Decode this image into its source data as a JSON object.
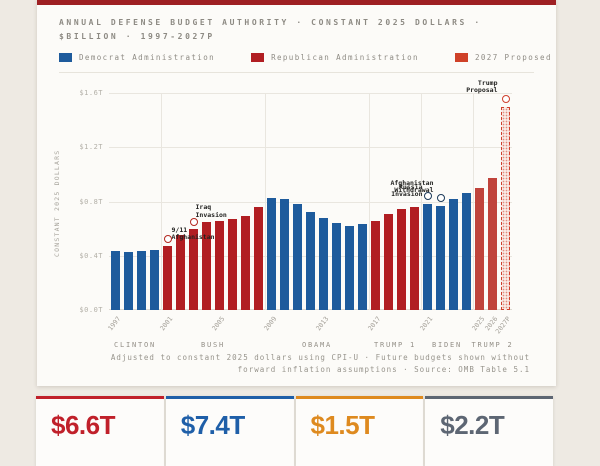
{
  "header": {
    "title": "ANNUAL DEFENSE BUDGET AUTHORITY · CONSTANT 2025 DOLLARS · $BILLION · 1997-2027P"
  },
  "legend": {
    "items": [
      {
        "label": "Democrat Administration",
        "color": "#1e5b9c"
      },
      {
        "label": "Republican Administration",
        "color": "#b11e22"
      },
      {
        "label": "2027 Proposed",
        "color": "#cf4128"
      }
    ]
  },
  "chart_data": {
    "type": "bar",
    "title": "ANNUAL DEFENSE BUDGET AUTHORITY · CONSTANT 2025 DOLLARS · $BILLION · 1997-2027P",
    "xlabel": "",
    "ylabel": "CONSTANT 2025 DOLLARS",
    "unit": "billions of constant 2025 dollars",
    "ylim": [
      0,
      1600
    ],
    "grid": true,
    "yticks": [
      {
        "value": 0,
        "label": "$0.0T"
      },
      {
        "value": 400,
        "label": "$0.4T"
      },
      {
        "value": 800,
        "label": "$0.8T"
      },
      {
        "value": 1200,
        "label": "$1.2T"
      },
      {
        "value": 1600,
        "label": "$1.6T"
      }
    ],
    "series": [
      {
        "year": 1997,
        "value": 435,
        "party": "dem"
      },
      {
        "year": 1998,
        "value": 428,
        "party": "dem"
      },
      {
        "year": 1999,
        "value": 434,
        "party": "dem"
      },
      {
        "year": 2000,
        "value": 440,
        "party": "dem"
      },
      {
        "year": 2001,
        "value": 475,
        "party": "rep"
      },
      {
        "year": 2002,
        "value": 555,
        "party": "rep"
      },
      {
        "year": 2003,
        "value": 595,
        "party": "rep"
      },
      {
        "year": 2004,
        "value": 648,
        "party": "rep"
      },
      {
        "year": 2005,
        "value": 660,
        "party": "rep"
      },
      {
        "year": 2006,
        "value": 670,
        "party": "rep"
      },
      {
        "year": 2007,
        "value": 695,
        "party": "rep"
      },
      {
        "year": 2008,
        "value": 760,
        "party": "rep"
      },
      {
        "year": 2009,
        "value": 825,
        "party": "dem"
      },
      {
        "year": 2010,
        "value": 818,
        "party": "dem"
      },
      {
        "year": 2011,
        "value": 780,
        "party": "dem"
      },
      {
        "year": 2012,
        "value": 722,
        "party": "dem"
      },
      {
        "year": 2013,
        "value": 682,
        "party": "dem"
      },
      {
        "year": 2014,
        "value": 645,
        "party": "dem"
      },
      {
        "year": 2015,
        "value": 620,
        "party": "dem"
      },
      {
        "year": 2016,
        "value": 632,
        "party": "dem"
      },
      {
        "year": 2017,
        "value": 657,
        "party": "rep"
      },
      {
        "year": 2018,
        "value": 706,
        "party": "rep"
      },
      {
        "year": 2019,
        "value": 744,
        "party": "rep"
      },
      {
        "year": 2020,
        "value": 756,
        "party": "rep"
      },
      {
        "year": 2021,
        "value": 782,
        "party": "dem"
      },
      {
        "year": 2022,
        "value": 770,
        "party": "dem"
      },
      {
        "year": 2023,
        "value": 818,
        "party": "dem"
      },
      {
        "year": 2024,
        "value": 860,
        "party": "dem"
      },
      {
        "year": 2025,
        "value": 900,
        "party": "rep_current"
      },
      {
        "year": 2026,
        "value": 975,
        "party": "rep_current"
      },
      {
        "year": 2027,
        "value": 1500,
        "party": "proposed"
      }
    ],
    "party_colors": {
      "dem": "#1e5b9c",
      "rep": "#b11e22",
      "rep_current": "#c0433b",
      "proposed": "#cf3f2c"
    },
    "xticks": [
      {
        "year": 1997,
        "label": "1997"
      },
      {
        "year": 2001,
        "label": "2001"
      },
      {
        "year": 2005,
        "label": "2005"
      },
      {
        "year": 2009,
        "label": "2009"
      },
      {
        "year": 2013,
        "label": "2013"
      },
      {
        "year": 2017,
        "label": "2017"
      },
      {
        "year": 2021,
        "label": "2021"
      },
      {
        "year": 2025,
        "label": "2025"
      },
      {
        "year": 2026,
        "label": "2026"
      },
      {
        "year": 2027,
        "label": "2027P"
      }
    ],
    "boundary_gridlines_before_years": [
      2001,
      2009,
      2017,
      2021,
      2025
    ],
    "administrations": [
      {
        "label": "CLINTON",
        "from": 1997,
        "to": 2000
      },
      {
        "label": "BUSH",
        "from": 2001,
        "to": 2008
      },
      {
        "label": "OBAMA",
        "from": 2009,
        "to": 2016
      },
      {
        "label": "TRUMP 1",
        "from": 2017,
        "to": 2020
      },
      {
        "label": "BIDEN",
        "from": 2021,
        "to": 2024
      },
      {
        "label": "TRUMP 2",
        "from": 2025,
        "to": 2027
      }
    ],
    "annotations": [
      {
        "lines": [
          "9/11",
          "Afghanistan"
        ],
        "year": 2001,
        "marker_color": "#b3271e"
      },
      {
        "lines": [
          "Iraq",
          "Invasion"
        ],
        "year": 2003,
        "marker_color": "#b3271e"
      },
      {
        "lines": [
          "Afghanistan",
          "Withdrawal"
        ],
        "year": 2021,
        "marker_color": "#1c3a59"
      },
      {
        "lines": [
          "Russia",
          "Invasion"
        ],
        "year": 2022,
        "marker_color": "#1c3a59"
      },
      {
        "lines": [
          "Trump",
          "Proposal"
        ],
        "year": 2027,
        "marker_color": "#cf3f2c"
      }
    ],
    "legend_position": "top"
  },
  "footnote": {
    "text": "Adjusted to constant 2025 dollars using CPI-U · Future budgets shown without forward inflation assumptions · Source: OMB Table 5.1"
  },
  "stats": {
    "cards": [
      {
        "value": "$6.6T",
        "color": "#c0202a"
      },
      {
        "value": "$7.4T",
        "color": "#1f5fa8"
      },
      {
        "value": "$1.5T",
        "color": "#de8a1f"
      },
      {
        "value": "$2.2T",
        "color": "#5d6673"
      }
    ]
  }
}
